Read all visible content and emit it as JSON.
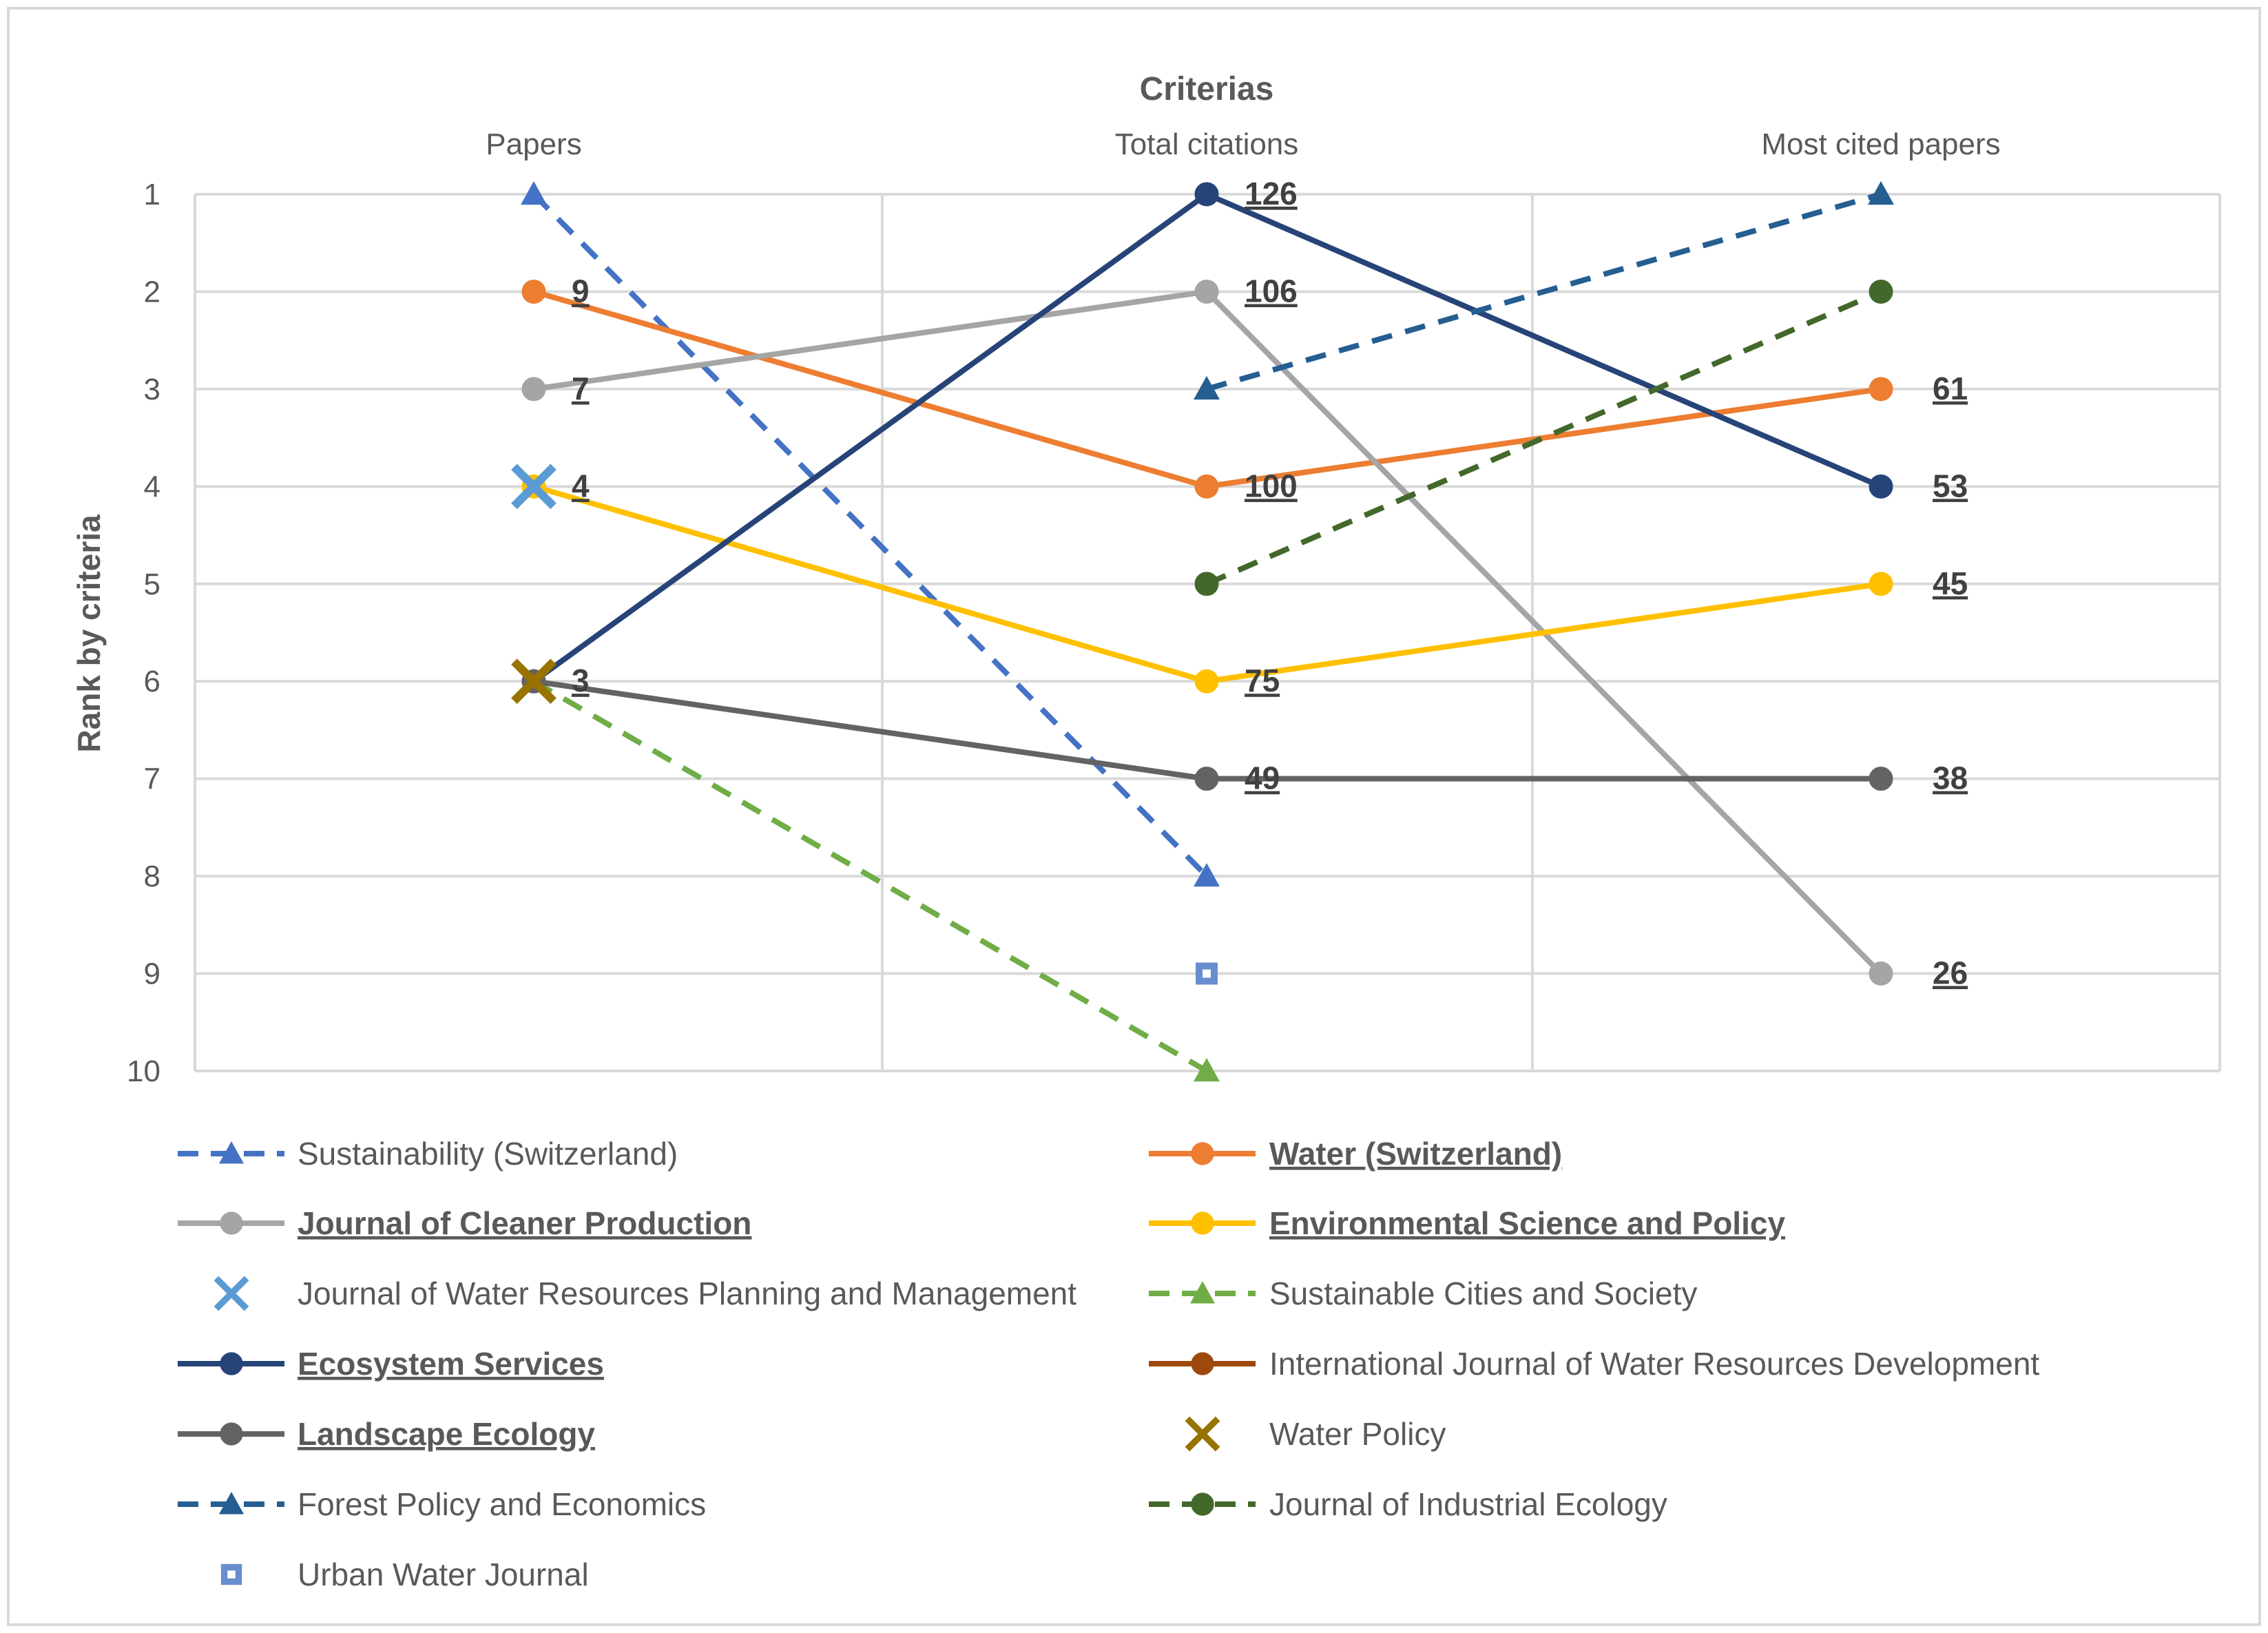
{
  "chart_data": {
    "type": "line",
    "title": "Criterias",
    "categories": [
      "Papers",
      "Total citations",
      "Most cited papers"
    ],
    "ylabel": "Rank by criteria",
    "ylim": [
      1,
      10
    ],
    "y_ticks": [
      "1",
      "2",
      "3",
      "4",
      "5",
      "6",
      "7",
      "8",
      "9",
      "10"
    ],
    "y_inverted": true,
    "grid": true,
    "legend_position": "bottom",
    "series": [
      {
        "name": "Sustainability (Switzerland)",
        "color": "#4472C4",
        "dash": true,
        "marker": "triangle",
        "highlight": false,
        "ranks": [
          1,
          8,
          null
        ],
        "labels": [
          null,
          null,
          null
        ]
      },
      {
        "name": "Water (Switzerland)",
        "color": "#ED7D31",
        "dash": false,
        "marker": "circle",
        "highlight": true,
        "ranks": [
          2,
          4,
          3
        ],
        "labels": [
          "9",
          "100",
          "61"
        ]
      },
      {
        "name": "Journal of Cleaner Production",
        "color": "#A5A5A5",
        "dash": false,
        "marker": "circle",
        "highlight": true,
        "ranks": [
          3,
          2,
          9
        ],
        "labels": [
          "7",
          "106",
          "26"
        ]
      },
      {
        "name": "Environmental Science and Policy",
        "color": "#FFC000",
        "dash": false,
        "marker": "circle",
        "highlight": true,
        "ranks": [
          4,
          6,
          5
        ],
        "labels": [
          "4",
          "75",
          "45"
        ]
      },
      {
        "name": "Journal of Water Resources Planning and Management",
        "color": "#5B9BD5",
        "dash": false,
        "marker": "x",
        "highlight": false,
        "ranks": [
          4,
          null,
          null
        ],
        "labels": [
          null,
          null,
          null
        ]
      },
      {
        "name": "Sustainable Cities and Society",
        "color": "#70AD47",
        "dash": true,
        "marker": "triangle",
        "highlight": false,
        "ranks": [
          6,
          10,
          null
        ],
        "labels": [
          null,
          null,
          null
        ]
      },
      {
        "name": "Ecosystem Services",
        "color": "#264478",
        "dash": false,
        "marker": "circle",
        "highlight": true,
        "ranks": [
          6,
          1,
          4
        ],
        "labels": [
          "3",
          "126",
          "53"
        ]
      },
      {
        "name": "International Journal of Water Resources Development",
        "color": "#9E480E",
        "dash": false,
        "marker": "circle",
        "highlight": false,
        "ranks": [
          null,
          null,
          null
        ],
        "labels": [
          null,
          null,
          null
        ]
      },
      {
        "name": "Landscape Ecology",
        "color": "#636363",
        "dash": false,
        "marker": "circle",
        "highlight": true,
        "ranks": [
          6,
          7,
          7
        ],
        "labels": [
          null,
          "49",
          "38"
        ]
      },
      {
        "name": "Water Policy",
        "color": "#997300",
        "dash": false,
        "marker": "x",
        "highlight": false,
        "ranks": [
          6,
          null,
          null
        ],
        "labels": [
          null,
          null,
          null
        ]
      },
      {
        "name": "Forest Policy and Economics",
        "color": "#255E91",
        "dash": true,
        "marker": "triangle",
        "highlight": false,
        "ranks": [
          null,
          3,
          1
        ],
        "labels": [
          null,
          null,
          null
        ]
      },
      {
        "name": "Journal of Industrial Ecology",
        "color": "#43682B",
        "dash": true,
        "marker": "circle",
        "highlight": false,
        "ranks": [
          null,
          5,
          2
        ],
        "labels": [
          null,
          null,
          null
        ]
      },
      {
        "name": "Urban Water Journal",
        "color": "#698ED0",
        "dash": false,
        "marker": "square",
        "highlight": false,
        "ranks": [
          null,
          9,
          null
        ],
        "labels": [
          null,
          null,
          null
        ]
      }
    ]
  }
}
